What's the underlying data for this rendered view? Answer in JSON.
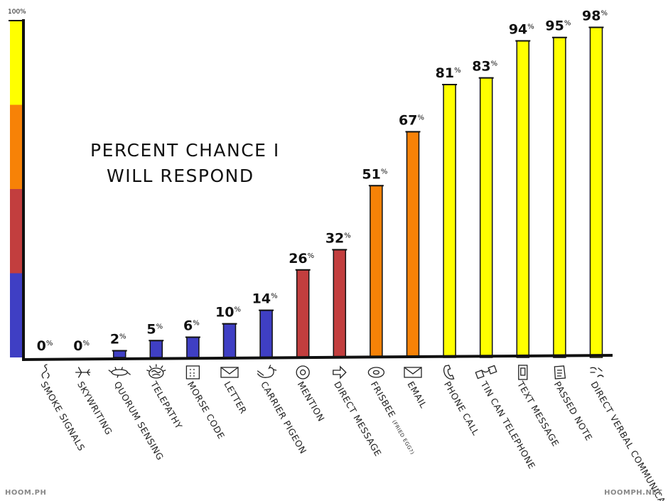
{
  "chart_data": {
    "type": "bar",
    "title_lines": [
      "PERCENT CHANCE I",
      "WILL RESPOND"
    ],
    "categories": [
      "SMOKE SIGNALS",
      "SKYWRITING",
      "QUORUM SENSING",
      "TELEPATHY",
      "MORSE CODE",
      "LETTER",
      "CARRIER PIGEON",
      "MENTION",
      "DIRECT MESSAGE",
      "FRISBEE",
      "EMAIL",
      "PHONE CALL",
      "TIN CAN TELEPHONE",
      "TEXT MESSAGE",
      "PASSED NOTE",
      "DIRECT VERBAL COMMUNICATION"
    ],
    "values": [
      0,
      0,
      2,
      5,
      6,
      10,
      14,
      26,
      32,
      51,
      67,
      81,
      83,
      94,
      95,
      98
    ],
    "value_labels": [
      "0",
      "0",
      "2",
      "5",
      "6",
      "10",
      "14",
      "26",
      "32",
      "51",
      "67",
      "81",
      "83",
      "94",
      "95",
      "98"
    ],
    "percent_sign": "%",
    "frisbee_note": "(FRIED EGG?)",
    "y_top_label": "100%",
    "ylim": [
      0,
      100
    ],
    "icons": [
      "smoke-icon",
      "airplane-icon",
      "bacterium-icon",
      "brain-icon",
      "keypad-icon",
      "envelope-icon",
      "pigeon-icon",
      "at-sign-icon",
      "arrow-icon",
      "disc-icon",
      "email-icon",
      "phone-icon",
      "tin-cans-icon",
      "mobile-icon",
      "note-icon",
      "speech-icon"
    ],
    "colors": {
      "blue": "#3f3fc4",
      "red": "#c23e3e",
      "orange": "#f78207",
      "yellow": "#ffff00",
      "outline": "#111111"
    },
    "axis_bands": [
      {
        "from": 0,
        "to": 25,
        "color": "blue"
      },
      {
        "from": 25,
        "to": 50,
        "color": "red"
      },
      {
        "from": 50,
        "to": 75,
        "color": "orange"
      },
      {
        "from": 75,
        "to": 100,
        "color": "yellow"
      }
    ],
    "grid": false
  },
  "footer": {
    "left": "HOOM.PH",
    "right": "HOOMPH.NET"
  }
}
